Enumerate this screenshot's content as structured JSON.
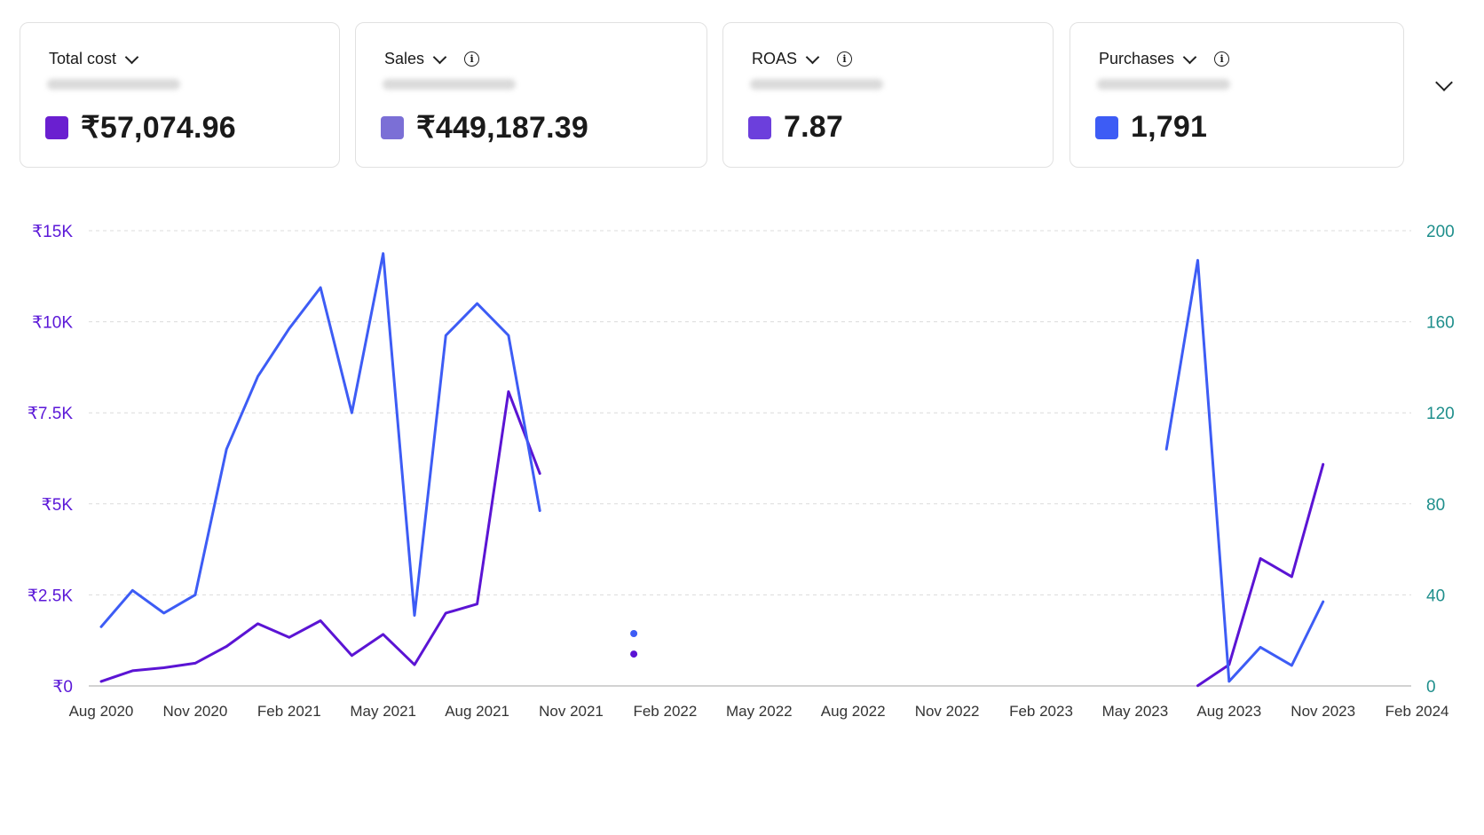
{
  "cards": [
    {
      "label": "Total cost",
      "value": "₹57,074.96",
      "color": "#6a1fd0",
      "info": false
    },
    {
      "label": "Sales",
      "value": "₹449,187.39",
      "color": "#7b6fd6",
      "info": true
    },
    {
      "label": "ROAS",
      "value": "7.87",
      "color": "#6c3fdc",
      "info": true
    },
    {
      "label": "Purchases",
      "value": "1,791",
      "color": "#3d5cf5",
      "info": true
    }
  ],
  "icons": {
    "dropdown": "chevron-down-icon",
    "info": "info-icon",
    "expand": "chevron-down-icon"
  },
  "chart_data": {
    "type": "line",
    "x": [
      "Aug 2020",
      "Sep 2020",
      "Oct 2020",
      "Nov 2020",
      "Dec 2020",
      "Jan 2021",
      "Feb 2021",
      "Mar 2021",
      "Apr 2021",
      "May 2021",
      "Jun 2021",
      "Jul 2021",
      "Aug 2021",
      "Sep 2021",
      "Oct 2021",
      "Nov 2021",
      "Dec 2021",
      "Jan 2022",
      "Feb 2022",
      "Mar 2022",
      "Apr 2022",
      "May 2022",
      "Jun 2022",
      "Jul 2022",
      "Aug 2022",
      "Sep 2022",
      "Oct 2022",
      "Nov 2022",
      "Dec 2022",
      "Jan 2023",
      "Feb 2023",
      "Mar 2023",
      "Apr 2023",
      "May 2023",
      "Jun 2023",
      "Jul 2023",
      "Aug 2023",
      "Sep 2023",
      "Oct 2023",
      "Nov 2023",
      "Dec 2023",
      "Jan 2024",
      "Feb 2024"
    ],
    "x_ticks": [
      "Aug 2020",
      "Nov 2020",
      "Feb 2021",
      "May 2021",
      "Aug 2021",
      "Nov 2021",
      "Feb 2022",
      "May 2022",
      "Aug 2022",
      "Nov 2022",
      "Feb 2023",
      "May 2023",
      "Aug 2023",
      "Nov 2023",
      "Feb 2024"
    ],
    "y_left": {
      "ticks": [
        "₹0",
        "₹2.5K",
        "₹5K",
        "₹7.5K",
        "₹10K",
        "₹15K"
      ],
      "ylim": [
        0,
        15000
      ],
      "color": "#5b18d8"
    },
    "y_right": {
      "ticks": [
        "0",
        "40",
        "80",
        "120",
        "160",
        "200"
      ],
      "ylim": [
        0,
        200
      ],
      "color": "#1f8f8c"
    },
    "grid": true,
    "series": [
      {
        "axis": "left",
        "color": "#5b14d4",
        "values": [
          150,
          500,
          600,
          750,
          1300,
          2050,
          1600,
          2150,
          1000,
          1700,
          700,
          2400,
          2700,
          9700,
          7000,
          null,
          null,
          null,
          null,
          null,
          null,
          null,
          null,
          null,
          null,
          null,
          null,
          null,
          null,
          null,
          null,
          null,
          null,
          null,
          null,
          8,
          700,
          4200,
          3600,
          7300,
          null,
          null,
          null
        ]
      },
      {
        "axis": "right",
        "color": "#3d5cf5",
        "values": [
          26,
          42,
          32,
          40,
          104,
          136,
          157,
          175,
          120,
          190,
          31,
          154,
          168,
          154,
          77,
          null,
          null,
          null,
          null,
          null,
          null,
          null,
          null,
          null,
          null,
          null,
          null,
          null,
          null,
          null,
          null,
          null,
          null,
          null,
          104,
          187,
          2,
          17,
          9,
          37,
          null,
          null,
          null
        ]
      }
    ],
    "isolated_points": [
      {
        "x": "Jan 2022",
        "axis": "right",
        "y": 23,
        "color": "#3d5cf5"
      },
      {
        "x": "Jan 2022",
        "axis": "left",
        "y": 1050,
        "color": "#5b14d4"
      }
    ]
  }
}
